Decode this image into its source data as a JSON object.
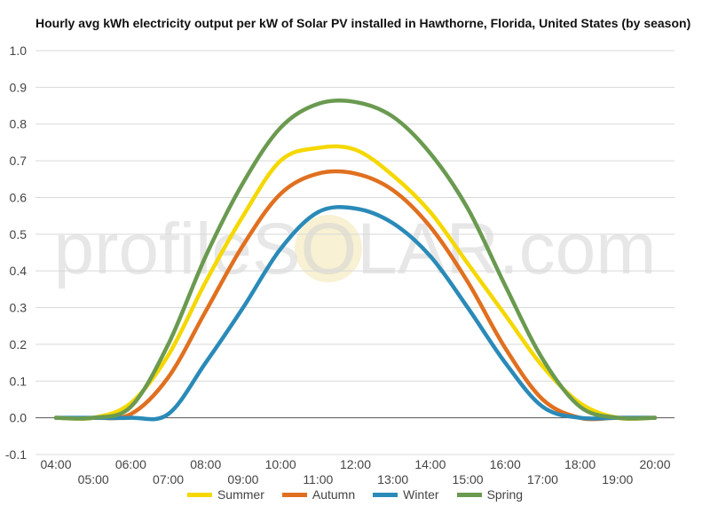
{
  "chart_data": {
    "type": "line",
    "title": "Hourly avg kWh electricity output per kW of Solar PV installed in Hawthorne, Florida, United States (by season)",
    "watermark": "profileSOLAR.com",
    "xlabel": "",
    "ylabel": "",
    "ylim": [
      -0.1,
      1.0
    ],
    "yticks": [
      "1.0",
      "0.9",
      "0.8",
      "0.7",
      "0.6",
      "0.5",
      "0.4",
      "0.3",
      "0.2",
      "0.1",
      "0.0",
      "-0.1"
    ],
    "categories": [
      "04:00",
      "05:00",
      "06:00",
      "07:00",
      "08:00",
      "09:00",
      "10:00",
      "11:00",
      "12:00",
      "13:00",
      "14:00",
      "15:00",
      "16:00",
      "17:00",
      "18:00",
      "19:00",
      "20:00"
    ],
    "grid": true,
    "legend_position": "bottom",
    "series": [
      {
        "name": "Summer",
        "color": "#f5d800",
        "values": [
          0.0,
          0.0,
          0.04,
          0.17,
          0.37,
          0.55,
          0.7,
          0.735,
          0.73,
          0.66,
          0.56,
          0.42,
          0.28,
          0.14,
          0.04,
          0.0,
          0.0
        ]
      },
      {
        "name": "Autumn",
        "color": "#e07020",
        "values": [
          0.0,
          0.0,
          0.01,
          0.11,
          0.29,
          0.47,
          0.61,
          0.665,
          0.665,
          0.62,
          0.52,
          0.37,
          0.19,
          0.05,
          0.0,
          0.0,
          0.0
        ]
      },
      {
        "name": "Winter",
        "color": "#2a8ab8",
        "values": [
          0.0,
          0.0,
          0.0,
          0.01,
          0.15,
          0.3,
          0.46,
          0.56,
          0.57,
          0.53,
          0.44,
          0.3,
          0.15,
          0.03,
          0.0,
          0.0,
          0.0
        ]
      },
      {
        "name": "Spring",
        "color": "#6a9a50",
        "values": [
          0.0,
          0.0,
          0.03,
          0.2,
          0.44,
          0.64,
          0.79,
          0.855,
          0.86,
          0.82,
          0.72,
          0.57,
          0.36,
          0.16,
          0.03,
          0.0,
          0.0
        ]
      }
    ]
  }
}
